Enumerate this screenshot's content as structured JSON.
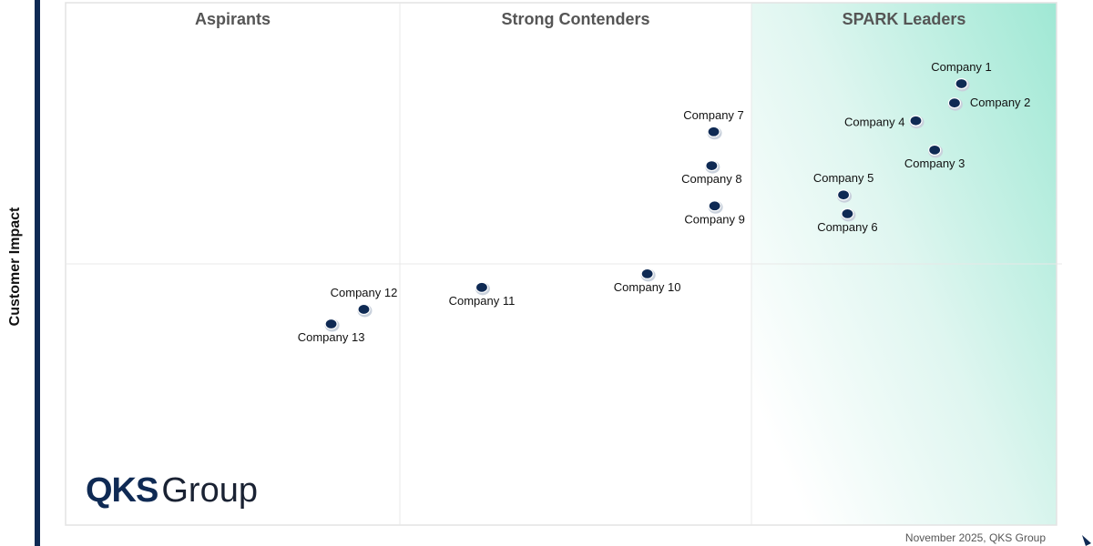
{
  "chart_data": {
    "type": "scatter",
    "title": "",
    "ylabel": "Customer Impact",
    "xlabel": "",
    "xlim": [
      0,
      100
    ],
    "ylim": [
      0,
      100
    ],
    "grid": false,
    "quadrants": [
      "Aspirants",
      "Strong Contenders",
      "SPARK Leaders"
    ],
    "leader_gradient_color": "#9fe8d4",
    "point_color": "#0f2a54",
    "points": [
      {
        "name": "Company 1",
        "x": 90.4,
        "y": 84.5,
        "label": "above"
      },
      {
        "name": "Company 2",
        "x": 89.7,
        "y": 80.8,
        "label": "right"
      },
      {
        "name": "Company 3",
        "x": 87.7,
        "y": 71.8,
        "label": "below"
      },
      {
        "name": "Company 4",
        "x": 85.8,
        "y": 77.4,
        "label": "above-left"
      },
      {
        "name": "Company 5",
        "x": 78.5,
        "y": 63.2,
        "label": "above"
      },
      {
        "name": "Company 6",
        "x": 78.9,
        "y": 59.6,
        "label": "below"
      },
      {
        "name": "Company 7",
        "x": 65.4,
        "y": 75.3,
        "label": "above"
      },
      {
        "name": "Company 8",
        "x": 65.2,
        "y": 68.8,
        "label": "below"
      },
      {
        "name": "Company 9",
        "x": 65.5,
        "y": 61.1,
        "label": "below"
      },
      {
        "name": "Company 10",
        "x": 58.7,
        "y": 48.1,
        "label": "below"
      },
      {
        "name": "Company 11",
        "x": 42.0,
        "y": 45.5,
        "label": "below"
      },
      {
        "name": "Company 12",
        "x": 30.1,
        "y": 41.3,
        "label": "above"
      },
      {
        "name": "Company 13",
        "x": 26.8,
        "y": 38.5,
        "label": "below"
      }
    ]
  },
  "logo": {
    "bold": "QKS",
    "light": "Group"
  },
  "footer": "November 2025, QKS Group"
}
